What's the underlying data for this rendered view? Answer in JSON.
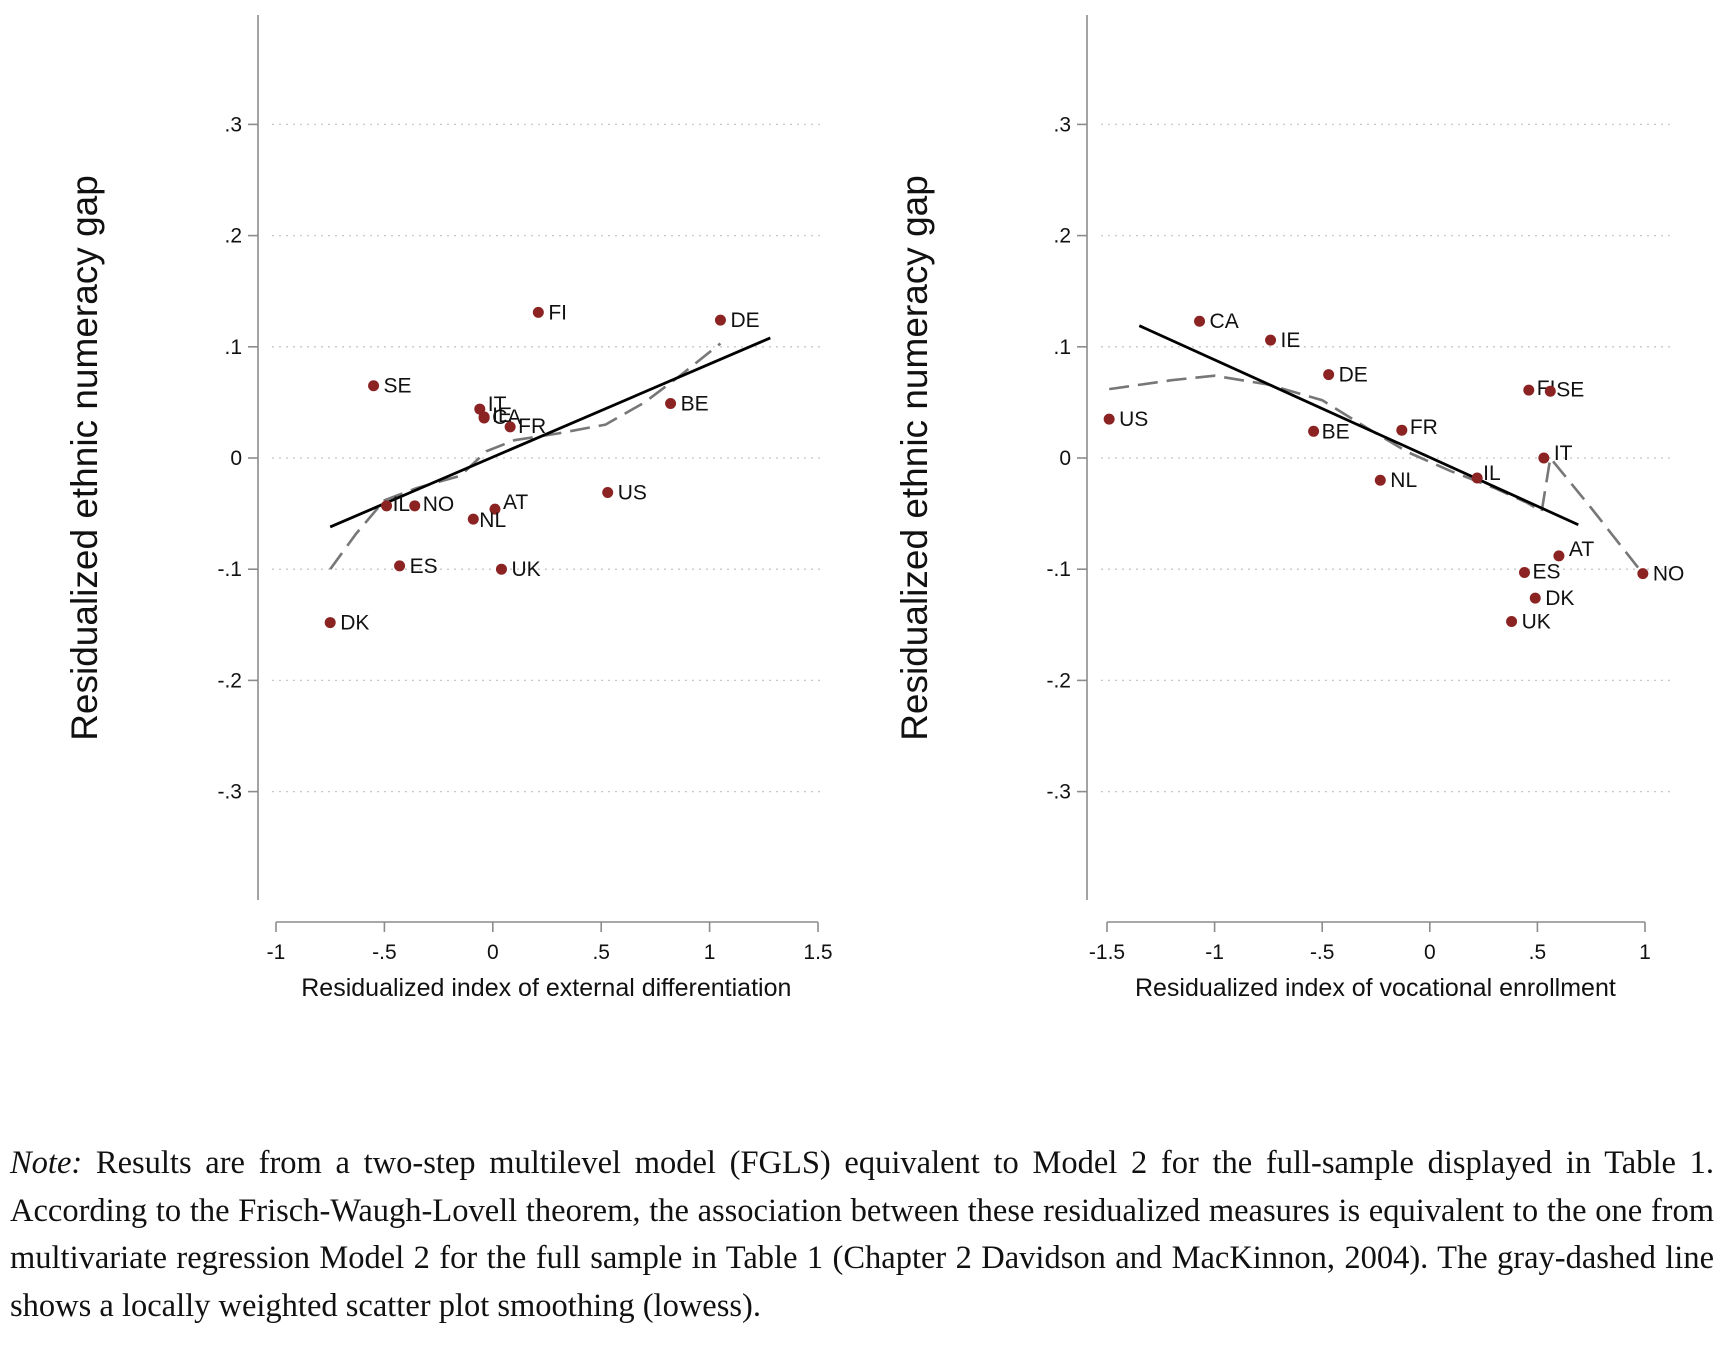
{
  "chart_data": [
    {
      "type": "scatter",
      "title": "",
      "xlabel": "Residualized index of external differentiation",
      "ylabel": "Residualized ethnic numeracy gap",
      "xlim": [
        -1.08,
        1.5
      ],
      "ylim": [
        -0.4,
        0.4
      ],
      "xticks": [
        -1,
        -0.5,
        0,
        0.5,
        1,
        1.5
      ],
      "xtick_labels": [
        "-1",
        "-.5",
        "0",
        ".5",
        "1",
        "1.5"
      ],
      "yticks": [
        -0.3,
        -0.2,
        -0.1,
        0,
        0.1,
        0.2,
        0.3
      ],
      "ytick_labels": [
        "-.3",
        "-.2",
        "-.1",
        "0",
        ".1",
        ".2",
        ".3"
      ],
      "grid": true,
      "point_color": "#8b2323",
      "points": [
        {
          "label": "FI",
          "x": 0.21,
          "y": 0.131
        },
        {
          "label": "DE",
          "x": 1.05,
          "y": 0.124
        },
        {
          "label": "SE",
          "x": -0.55,
          "y": 0.065
        },
        {
          "label": "IT",
          "x": -0.06,
          "y": 0.044
        },
        {
          "label": "CA",
          "x": -0.04,
          "y": 0.037
        },
        {
          "label": "IE",
          "x": -0.04,
          "y": 0.036
        },
        {
          "label": "FR",
          "x": 0.08,
          "y": 0.028
        },
        {
          "label": "BE",
          "x": 0.82,
          "y": 0.049
        },
        {
          "label": "US",
          "x": 0.53,
          "y": -0.031
        },
        {
          "label": "IL",
          "x": -0.49,
          "y": -0.043
        },
        {
          "label": "NO",
          "x": -0.36,
          "y": -0.043
        },
        {
          "label": "AT",
          "x": 0.01,
          "y": -0.046
        },
        {
          "label": "NL",
          "x": -0.09,
          "y": -0.055
        },
        {
          "label": "ES",
          "x": -0.43,
          "y": -0.097
        },
        {
          "label": "UK",
          "x": 0.04,
          "y": -0.1
        },
        {
          "label": "DK",
          "x": -0.75,
          "y": -0.148
        }
      ],
      "fit_line": {
        "x": [
          -0.75,
          1.28
        ],
        "y": [
          -0.062,
          0.108
        ]
      },
      "lowess": {
        "x": [
          -0.75,
          -0.63,
          -0.5,
          -0.35,
          -0.15,
          -0.03,
          0.1,
          0.3,
          0.52,
          0.7,
          0.87,
          1.05
        ],
        "y": [
          -0.1,
          -0.068,
          -0.038,
          -0.027,
          -0.016,
          0.006,
          0.016,
          0.022,
          0.03,
          0.05,
          0.075,
          0.103
        ]
      }
    },
    {
      "type": "scatter",
      "title": "",
      "xlabel": "Residualized index of vocational enrollment",
      "ylabel": "Residualized ethnic numeracy gap",
      "xlim": [
        -1.58,
        1.0
      ],
      "ylim": [
        -0.4,
        0.4
      ],
      "xticks": [
        -1.5,
        -1,
        -0.5,
        0,
        0.5,
        1
      ],
      "xtick_labels": [
        "-1.5",
        "-1",
        "-.5",
        "0",
        ".5",
        "1"
      ],
      "yticks": [
        -0.3,
        -0.2,
        -0.1,
        0,
        0.1,
        0.2,
        0.3
      ],
      "ytick_labels": [
        "-.3",
        "-.2",
        "-.1",
        "0",
        ".1",
        ".2",
        ".3"
      ],
      "grid": true,
      "point_color": "#8b2323",
      "points": [
        {
          "label": "CA",
          "x": -1.07,
          "y": 0.123
        },
        {
          "label": "IE",
          "x": -0.74,
          "y": 0.106
        },
        {
          "label": "DE",
          "x": -0.47,
          "y": 0.075
        },
        {
          "label": "US",
          "x": -1.49,
          "y": 0.035
        },
        {
          "label": "BE",
          "x": -0.54,
          "y": 0.024
        },
        {
          "label": "FR",
          "x": -0.13,
          "y": 0.025
        },
        {
          "label": "FI",
          "x": 0.46,
          "y": 0.061
        },
        {
          "label": "SE",
          "x": 0.56,
          "y": 0.06
        },
        {
          "label": "IT",
          "x": 0.53,
          "y": 0.0
        },
        {
          "label": "NL",
          "x": -0.23,
          "y": -0.02
        },
        {
          "label": "IL",
          "x": 0.22,
          "y": -0.018
        },
        {
          "label": "AT",
          "x": 0.6,
          "y": -0.088
        },
        {
          "label": "ES",
          "x": 0.44,
          "y": -0.103
        },
        {
          "label": "NO",
          "x": 0.99,
          "y": -0.104
        },
        {
          "label": "DK",
          "x": 0.49,
          "y": -0.126
        },
        {
          "label": "UK",
          "x": 0.38,
          "y": -0.147
        }
      ],
      "fit_line": {
        "x": [
          -1.35,
          0.69
        ],
        "y": [
          0.119,
          -0.06
        ]
      },
      "lowess": {
        "x": [
          -1.49,
          -1.2,
          -1.0,
          -0.75,
          -0.5,
          -0.3,
          -0.1,
          0.1,
          0.3,
          0.45,
          0.52,
          0.56,
          0.75,
          0.99
        ],
        "y": [
          0.062,
          0.07,
          0.074,
          0.066,
          0.052,
          0.028,
          0.005,
          -0.012,
          -0.027,
          -0.04,
          -0.048,
          0.0,
          -0.045,
          -0.104
        ]
      }
    }
  ],
  "note": {
    "lead": "Note:",
    "text": " Results are from a two-step multilevel model (FGLS) equivalent to Model 2 for the full-sample displayed in Table 1. According to the Frisch-Waugh-Lovell theorem, the association between these residualized measures is equivalent to the one from multivariate regression Model 2 for the full sample in Table 1 (Chapter 2 Davidson and MacKinnon, 2004). The gray-dashed line shows a locally weighted scatter plot smoothing (lowess)."
  }
}
